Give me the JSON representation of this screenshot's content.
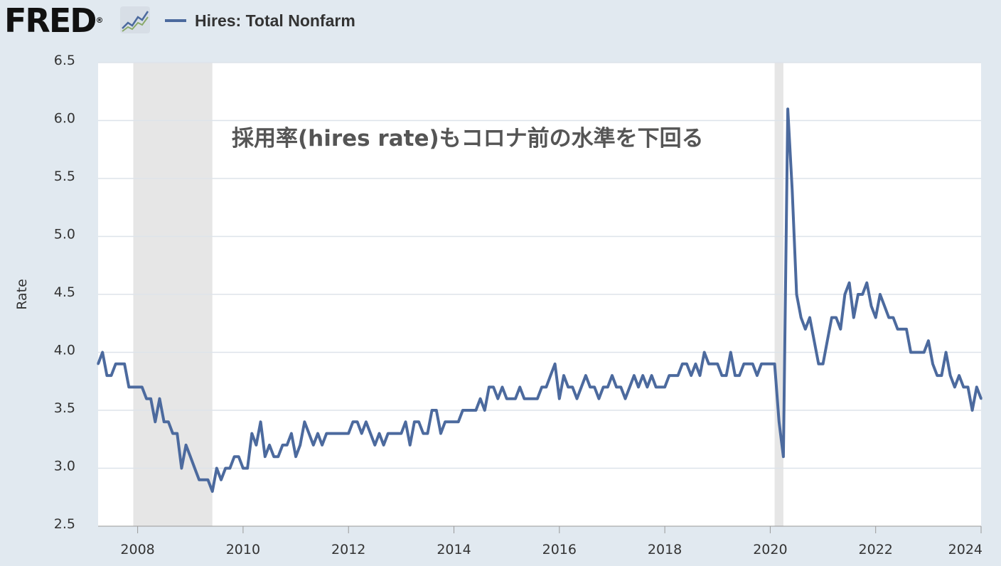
{
  "brand": {
    "logo_text": "FRED",
    "logo_mark": "®"
  },
  "colors": {
    "series": "#4c6a9e",
    "background": "#e1e9f0",
    "plot_bg": "#ffffff",
    "recession": "#e6e6e6",
    "grid": "#dde3ea"
  },
  "chart_data": {
    "type": "line",
    "title": "",
    "xlabel": "",
    "ylabel": "Rate",
    "annotation": "採用率(hires rate)もコロナ前の水準を下回る",
    "ylim": [
      2.5,
      6.5
    ],
    "xlim": [
      2007.25,
      2024.0
    ],
    "yticks": [
      "2.5",
      "3.0",
      "3.5",
      "4.0",
      "4.5",
      "5.0",
      "5.5",
      "6.0",
      "6.5"
    ],
    "xticks": [
      "2008",
      "2010",
      "2012",
      "2014",
      "2016",
      "2018",
      "2020",
      "2022",
      "2024"
    ],
    "legend": "top-left",
    "grid": true,
    "recessions": [
      [
        2007.917,
        2009.417
      ],
      [
        2020.083,
        2020.25
      ]
    ],
    "series": [
      {
        "name": "Hires: Total Nonfarm",
        "start": "2007-04",
        "frequency": "monthly",
        "values": [
          3.9,
          4.0,
          3.8,
          3.8,
          3.9,
          3.9,
          3.9,
          3.7,
          3.7,
          3.7,
          3.7,
          3.6,
          3.6,
          3.4,
          3.6,
          3.4,
          3.4,
          3.3,
          3.3,
          3.0,
          3.2,
          3.1,
          3.0,
          2.9,
          2.9,
          2.9,
          2.8,
          3.0,
          2.9,
          3.0,
          3.0,
          3.1,
          3.1,
          3.0,
          3.0,
          3.3,
          3.2,
          3.4,
          3.1,
          3.2,
          3.1,
          3.1,
          3.2,
          3.2,
          3.3,
          3.1,
          3.2,
          3.4,
          3.3,
          3.2,
          3.3,
          3.2,
          3.3,
          3.3,
          3.3,
          3.3,
          3.3,
          3.3,
          3.4,
          3.4,
          3.3,
          3.4,
          3.3,
          3.2,
          3.3,
          3.2,
          3.3,
          3.3,
          3.3,
          3.3,
          3.4,
          3.2,
          3.4,
          3.4,
          3.3,
          3.3,
          3.5,
          3.5,
          3.3,
          3.4,
          3.4,
          3.4,
          3.4,
          3.5,
          3.5,
          3.5,
          3.5,
          3.6,
          3.5,
          3.7,
          3.7,
          3.6,
          3.7,
          3.6,
          3.6,
          3.6,
          3.7,
          3.6,
          3.6,
          3.6,
          3.6,
          3.7,
          3.7,
          3.8,
          3.9,
          3.6,
          3.8,
          3.7,
          3.7,
          3.6,
          3.7,
          3.8,
          3.7,
          3.7,
          3.6,
          3.7,
          3.7,
          3.8,
          3.7,
          3.7,
          3.6,
          3.7,
          3.8,
          3.7,
          3.8,
          3.7,
          3.8,
          3.7,
          3.7,
          3.7,
          3.8,
          3.8,
          3.8,
          3.9,
          3.9,
          3.8,
          3.9,
          3.8,
          4.0,
          3.9,
          3.9,
          3.9,
          3.8,
          3.8,
          4.0,
          3.8,
          3.8,
          3.9,
          3.9,
          3.9,
          3.8,
          3.9,
          3.9,
          3.9,
          3.9,
          3.4,
          3.1,
          6.1,
          5.4,
          4.5,
          4.3,
          4.2,
          4.3,
          4.1,
          3.9,
          3.9,
          4.1,
          4.3,
          4.3,
          4.2,
          4.5,
          4.6,
          4.3,
          4.5,
          4.5,
          4.6,
          4.4,
          4.3,
          4.5,
          4.4,
          4.3,
          4.3,
          4.2,
          4.2,
          4.2,
          4.0,
          4.0,
          4.0,
          4.0,
          4.1,
          3.9,
          3.8,
          3.8,
          4.0,
          3.8,
          3.7,
          3.8,
          3.7,
          3.7,
          3.5,
          3.7,
          3.6
        ]
      }
    ]
  }
}
